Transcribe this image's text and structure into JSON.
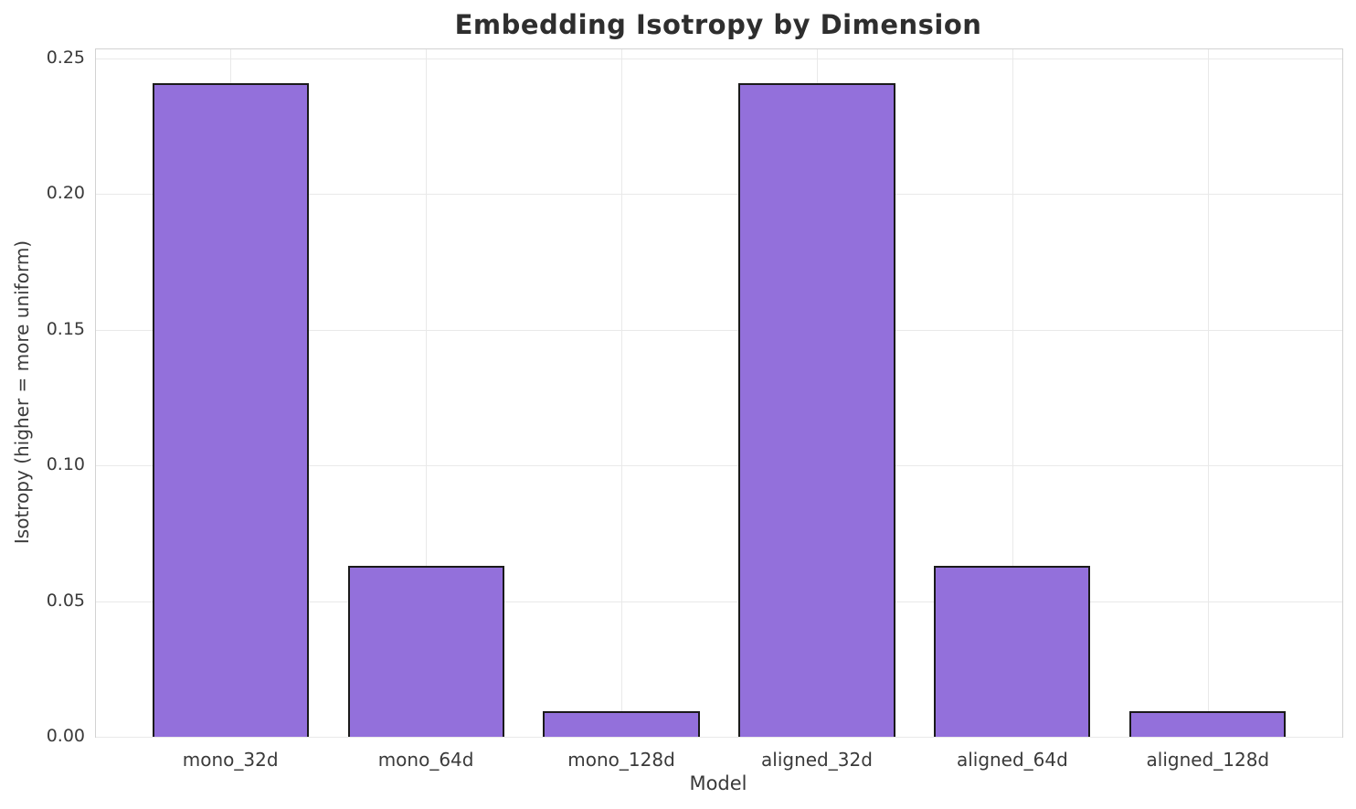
{
  "chart_data": {
    "type": "bar",
    "title": "Embedding Isotropy by Dimension",
    "xlabel": "Model",
    "ylabel": "Isotropy (higher = more uniform)",
    "categories": [
      "mono_32d",
      "mono_64d",
      "mono_128d",
      "aligned_32d",
      "aligned_64d",
      "aligned_128d"
    ],
    "values": [
      0.241,
      0.063,
      0.0095,
      0.241,
      0.063,
      0.0095
    ],
    "ylim": [
      0,
      0.2533
    ],
    "xlim": [
      -0.688,
      5.688
    ],
    "bar_width": 0.8,
    "yticks": [
      0,
      0.05,
      0.1,
      0.15,
      0.2,
      0.25
    ],
    "ytick_labels": [
      "0.00",
      "0.05",
      "0.10",
      "0.15",
      "0.20",
      "0.25"
    ],
    "grid": true,
    "legend": "none",
    "bar_color": "#9370DB",
    "bar_edge_color": "#1a1a1a",
    "grid_color": "#e9e9e9",
    "spine_color": "#d2d2d2",
    "title_color": "#2e2e2e",
    "text_color": "#3a3a3a"
  }
}
